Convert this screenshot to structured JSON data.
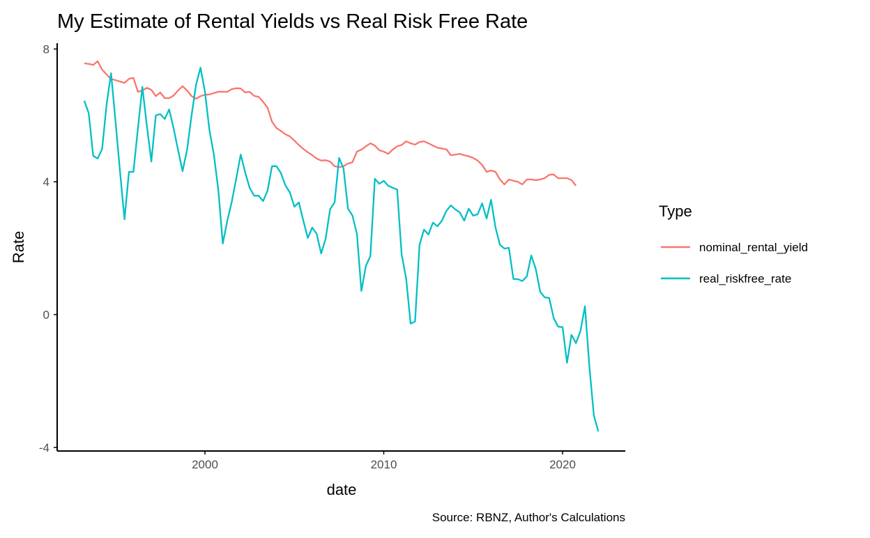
{
  "chart_data": {
    "type": "line",
    "title": "My Estimate of Rental Yields vs Real Risk Free Rate",
    "xlabel": "date",
    "ylabel": "Rate",
    "caption": "Source: RBNZ, Author's Calculations",
    "xlim": [
      1992.5,
      2023.3
    ],
    "ylim": [
      -4.15,
      8.2
    ],
    "x_ticks": [
      2000,
      2010,
      2020
    ],
    "x_tick_labels": [
      "2000",
      "2010",
      "2020"
    ],
    "y_ticks": [
      8,
      4,
      0,
      -4
    ],
    "y_tick_labels": [
      "8",
      "4",
      "0",
      "-4"
    ],
    "grid": false,
    "legend": {
      "title": "Type",
      "placement": "right"
    },
    "series": [
      {
        "name": "nominal_rental_yield",
        "color": "#F8766D",
        "start": 1993.25,
        "step": 0.25,
        "values": [
          7.57,
          7.55,
          7.52,
          7.63,
          7.38,
          7.23,
          7.1,
          7.06,
          7.02,
          6.98,
          7.1,
          7.13,
          6.71,
          6.75,
          6.83,
          6.77,
          6.58,
          6.69,
          6.52,
          6.52,
          6.6,
          6.75,
          6.88,
          6.75,
          6.58,
          6.5,
          6.58,
          6.62,
          6.63,
          6.67,
          6.71,
          6.71,
          6.71,
          6.79,
          6.82,
          6.81,
          6.69,
          6.71,
          6.59,
          6.56,
          6.41,
          6.23,
          5.81,
          5.62,
          5.53,
          5.43,
          5.37,
          5.24,
          5.11,
          4.99,
          4.89,
          4.8,
          4.7,
          4.64,
          4.65,
          4.61,
          4.47,
          4.44,
          4.47,
          4.55,
          4.59,
          4.91,
          4.97,
          5.07,
          5.16,
          5.09,
          4.95,
          4.91,
          4.84,
          4.97,
          5.07,
          5.11,
          5.22,
          5.16,
          5.12,
          5.2,
          5.22,
          5.16,
          5.09,
          5.03,
          5.0,
          4.98,
          4.8,
          4.82,
          4.84,
          4.8,
          4.77,
          4.72,
          4.64,
          4.51,
          4.3,
          4.34,
          4.3,
          4.07,
          3.92,
          4.07,
          4.03,
          4.0,
          3.92,
          4.07,
          4.07,
          4.05,
          4.07,
          4.11,
          4.21,
          4.22,
          4.11,
          4.11,
          4.11,
          4.05,
          3.88
        ]
      },
      {
        "name": "real_riskfree_rate",
        "color": "#00BFC4",
        "start": 1993.25,
        "step": 0.25,
        "values": [
          6.44,
          6.06,
          4.78,
          4.7,
          4.99,
          6.33,
          7.27,
          5.8,
          4.3,
          2.87,
          4.3,
          4.3,
          5.6,
          6.86,
          5.7,
          4.61,
          6.0,
          6.04,
          5.89,
          6.18,
          5.6,
          4.95,
          4.32,
          4.97,
          6.0,
          6.92,
          7.44,
          6.71,
          5.56,
          4.82,
          3.75,
          2.14,
          2.83,
          3.4,
          4.1,
          4.82,
          4.28,
          3.82,
          3.58,
          3.58,
          3.42,
          3.73,
          4.47,
          4.47,
          4.26,
          3.89,
          3.68,
          3.25,
          3.38,
          2.83,
          2.31,
          2.62,
          2.43,
          1.84,
          2.28,
          3.17,
          3.38,
          4.72,
          4.4,
          3.19,
          2.98,
          2.43,
          0.71,
          1.47,
          1.76,
          4.09,
          3.94,
          4.03,
          3.88,
          3.82,
          3.77,
          1.82,
          1.09,
          -0.27,
          -0.21,
          2.1,
          2.56,
          2.41,
          2.77,
          2.66,
          2.83,
          3.12,
          3.29,
          3.17,
          3.08,
          2.83,
          3.19,
          2.98,
          3.02,
          3.35,
          2.89,
          3.46,
          2.62,
          2.1,
          1.99,
          2.01,
          1.07,
          1.07,
          1.01,
          1.15,
          1.78,
          1.38,
          0.69,
          0.52,
          0.5,
          -0.1,
          -0.36,
          -0.38,
          -1.45,
          -0.61,
          -0.86,
          -0.5,
          0.25,
          -1.57,
          -3.04,
          -3.52
        ]
      }
    ]
  }
}
